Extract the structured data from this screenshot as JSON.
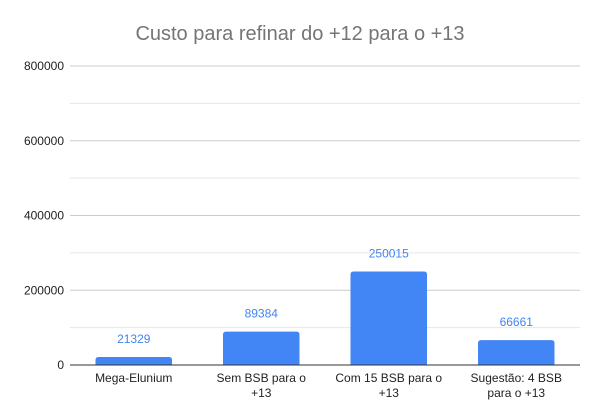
{
  "chart_data": {
    "type": "bar",
    "title": "Custo para refinar do +12 para o +13",
    "xlabel": "",
    "ylabel": "",
    "categories": [
      [
        "Mega-Elunium"
      ],
      [
        "Sem BSB para o",
        "+13"
      ],
      [
        "Com 15 BSB para o",
        "+13"
      ],
      [
        "Sugestão: 4 BSB",
        "para o +13"
      ]
    ],
    "values": [
      21329,
      89384,
      250015,
      66661
    ],
    "data_labels": [
      "21329",
      "89384",
      "250015",
      "66661"
    ],
    "ylim": [
      0,
      800000
    ],
    "yticks": [
      0,
      200000,
      400000,
      600000,
      800000
    ],
    "ytick_labels": [
      "0",
      "200000",
      "400000",
      "600000",
      "800000"
    ],
    "grid": true,
    "legend": "none",
    "colors": {
      "bar": "#4285f4",
      "label": "#4285f4",
      "grid": "#d9d9d9",
      "axis": "#333333"
    }
  }
}
